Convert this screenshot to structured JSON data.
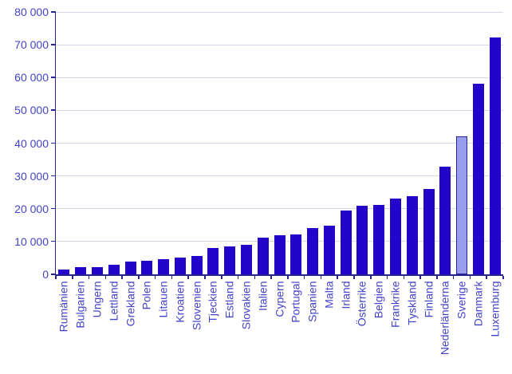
{
  "chart_data": {
    "type": "bar",
    "categories": [
      "Rumänien",
      "Bulgarien",
      "Ungern",
      "Lettland",
      "Grekland",
      "Polen",
      "Litauen",
      "Kroatien",
      "Slovenien",
      "Tjeckien",
      "Estland",
      "Slovakien",
      "Italien",
      "Cypern",
      "Portugal",
      "Spanien",
      "Malta",
      "Irland",
      "Österrike",
      "Belgien",
      "Frankrike",
      "Tyskland",
      "Finland",
      "Nederländerna",
      "Sverige",
      "Danmark",
      "Luxemburg"
    ],
    "values": [
      1500,
      2300,
      2200,
      2800,
      3900,
      4100,
      4700,
      5000,
      5600,
      8100,
      8400,
      9100,
      11200,
      11900,
      12200,
      14000,
      14900,
      19500,
      21000,
      21200,
      23000,
      23800,
      26000,
      32800,
      42000,
      58200,
      72300
    ],
    "highlight": {
      "category": "Sverige"
    },
    "ylim": [
      0,
      80000
    ],
    "ytick_step": 10000,
    "ytick_labels": [
      "0",
      "10 000",
      "20 000",
      "30 000",
      "40 000",
      "50 000",
      "60 000",
      "70 000",
      "80 000"
    ],
    "grid": true,
    "legend_position": "none",
    "colors": {
      "bar": "#2205C9",
      "highlight_fill": "#9B9EEC",
      "highlight_border": "#28238F",
      "axis": "#28238F",
      "grid": "#D7D7E8",
      "label": "#4343C7"
    }
  }
}
